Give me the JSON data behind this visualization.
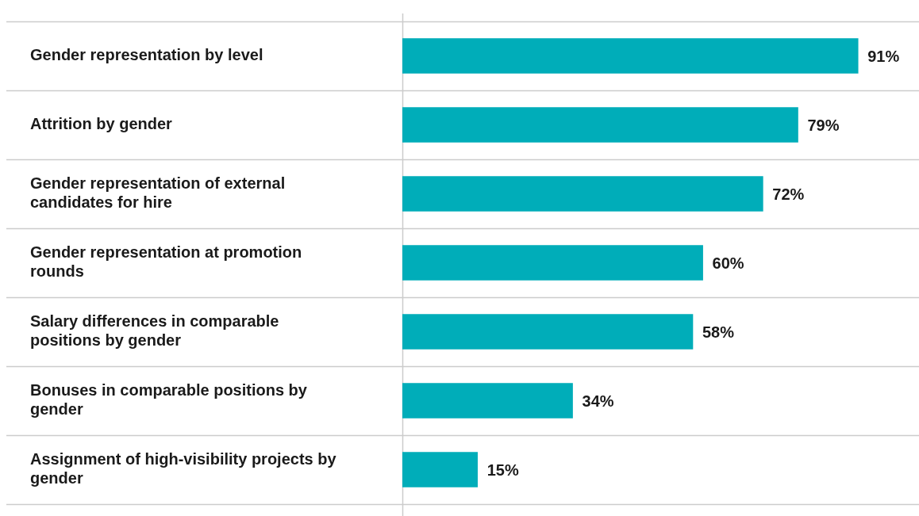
{
  "chart_data": {
    "type": "bar",
    "orientation": "horizontal",
    "categories": [
      "Gender representation by level",
      "Attrition by gender",
      "Gender representation of external candidates for hire",
      "Gender representation at promotion rounds",
      "Salary differences in comparable positions by gender",
      "Bonuses in comparable positions by gender",
      "Assignment of high-visibility projects by gender"
    ],
    "values": [
      91,
      79,
      72,
      60,
      58,
      34,
      15
    ],
    "value_labels": [
      "91%",
      "79%",
      "72%",
      "60%",
      "58%",
      "34%",
      "15%"
    ],
    "color": "#00adb9",
    "grid": "y",
    "legend": false
  }
}
